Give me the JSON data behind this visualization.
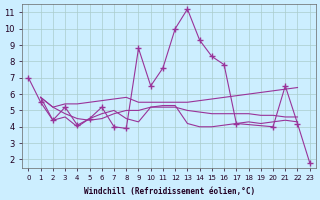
{
  "xlabel": "Windchill (Refroidissement éolien,°C)",
  "bg_color": "#cceeff",
  "line_color": "#993399",
  "grid_color": "#aacccc",
  "x_ticks": [
    0,
    1,
    2,
    3,
    4,
    5,
    6,
    7,
    8,
    9,
    10,
    11,
    12,
    13,
    14,
    15,
    16,
    17,
    18,
    19,
    20,
    21,
    22,
    23
  ],
  "y_ticks": [
    2,
    3,
    4,
    5,
    6,
    7,
    8,
    9,
    10,
    11
  ],
  "xlim": [
    -0.5,
    23.5
  ],
  "ylim": [
    1.5,
    11.5
  ],
  "series": [
    {
      "x": [
        0,
        1,
        2,
        3,
        4,
        5,
        6,
        7,
        8,
        9,
        10,
        11,
        12,
        13,
        14,
        15,
        16,
        17,
        20,
        21,
        22,
        23
      ],
      "y": [
        7.0,
        5.5,
        4.4,
        5.2,
        4.1,
        4.5,
        5.2,
        4.0,
        3.9,
        8.8,
        6.5,
        7.6,
        10.0,
        11.2,
        9.3,
        8.3,
        7.8,
        4.2,
        4.0,
        6.5,
        4.2,
        1.8
      ],
      "markers": true
    },
    {
      "x": [
        1,
        2,
        3,
        4,
        5,
        6,
        7,
        8,
        9,
        10,
        11,
        12,
        13,
        14,
        15,
        16,
        17,
        18,
        19,
        20,
        21,
        22
      ],
      "y": [
        5.8,
        4.4,
        4.6,
        4.0,
        4.5,
        4.8,
        5.0,
        4.5,
        4.3,
        5.2,
        5.3,
        5.3,
        4.2,
        4.0,
        4.0,
        4.1,
        4.2,
        4.3,
        4.2,
        4.3,
        4.4,
        4.3
      ],
      "markers": false
    },
    {
      "x": [
        1,
        2,
        3,
        4,
        5,
        6,
        7,
        8,
        9,
        10,
        11,
        12,
        13,
        14,
        15,
        16,
        17,
        18,
        19,
        20,
        21,
        22
      ],
      "y": [
        5.8,
        5.2,
        5.4,
        5.4,
        5.5,
        5.6,
        5.7,
        5.8,
        5.5,
        5.5,
        5.5,
        5.5,
        5.5,
        5.6,
        5.7,
        5.8,
        5.9,
        6.0,
        6.1,
        6.2,
        6.3,
        6.4
      ],
      "markers": false
    },
    {
      "x": [
        1,
        2,
        3,
        4,
        5,
        6,
        7,
        8,
        9,
        10,
        11,
        12,
        13,
        14,
        15,
        16,
        17,
        18,
        19,
        20,
        21,
        22
      ],
      "y": [
        5.8,
        5.2,
        4.8,
        4.5,
        4.4,
        4.5,
        4.8,
        5.0,
        5.0,
        5.2,
        5.2,
        5.2,
        5.0,
        4.9,
        4.8,
        4.8,
        4.8,
        4.8,
        4.7,
        4.7,
        4.6,
        4.6
      ],
      "markers": false
    }
  ]
}
